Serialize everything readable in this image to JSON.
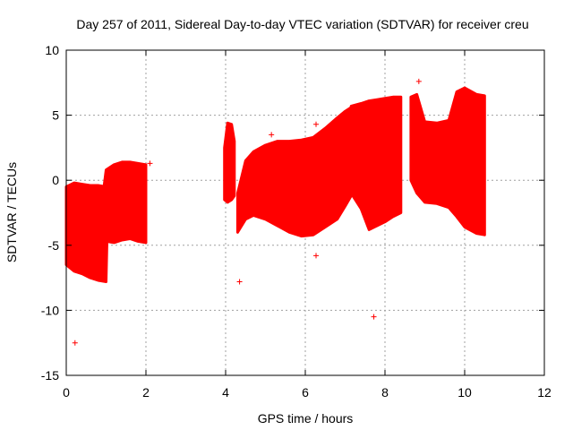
{
  "chart_data": {
    "type": "scatter",
    "title": "Day 257 of 2011, Sidereal Day-to-day VTEC variation (SDTVAR) for receiver creu",
    "xlabel": "GPS time / hours",
    "ylabel": "SDTVAR / TECUs",
    "xlim": [
      0,
      12
    ],
    "ylim": [
      -15,
      10
    ],
    "xticks": [
      0,
      2,
      4,
      6,
      8,
      10,
      12
    ],
    "yticks": [
      -15,
      -10,
      -5,
      0,
      5,
      10
    ],
    "xtick_labels": [
      "0",
      "2",
      "4",
      "6",
      "8",
      "10",
      "12"
    ],
    "ytick_labels": [
      "-15",
      "-10",
      "-5",
      "0",
      "5",
      "10"
    ],
    "grid": true,
    "legend": "none",
    "series": [
      {
        "name": "SDTVAR",
        "color": "#ff0000",
        "marker": "plus",
        "bands": [
          {
            "x": [
              0.0,
              0.2,
              0.4,
              0.6,
              0.8,
              1.0,
              1.02
            ],
            "upper": [
              -0.5,
              -0.2,
              -0.3,
              -0.4,
              -0.4,
              -0.5,
              -0.5
            ],
            "lower": [
              -6.5,
              -7.0,
              -7.2,
              -7.5,
              -7.7,
              -7.8,
              -5.0
            ]
          },
          {
            "x": [
              0.95,
              1.0,
              1.2,
              1.4,
              1.6,
              1.8,
              2.0
            ],
            "upper": [
              -0.4,
              0.8,
              1.2,
              1.4,
              1.4,
              1.3,
              1.2
            ],
            "lower": [
              -5.0,
              -4.7,
              -4.8,
              -4.6,
              -4.5,
              -4.7,
              -4.8
            ]
          },
          {
            "x": [
              3.97,
              4.05,
              4.15,
              4.22
            ],
            "upper": [
              2.5,
              4.4,
              4.3,
              3.0
            ],
            "lower": [
              -1.5,
              -1.7,
              -1.5,
              -1.2
            ]
          },
          {
            "x": [
              4.3,
              4.5,
              4.7,
              5.0,
              5.3,
              5.6,
              5.9,
              6.2,
              6.5,
              6.8,
              7.0,
              7.15
            ],
            "upper": [
              -1.0,
              1.5,
              2.2,
              2.7,
              3.0,
              3.0,
              3.1,
              3.3,
              4.0,
              4.8,
              5.3,
              5.6
            ],
            "lower": [
              -4.0,
              -3.0,
              -2.7,
              -3.0,
              -3.5,
              -4.0,
              -4.3,
              -4.2,
              -3.6,
              -3.0,
              -2.0,
              -1.2
            ]
          },
          {
            "x": [
              7.15,
              7.4,
              7.6,
              7.8,
              8.0,
              8.2,
              8.4
            ],
            "upper": [
              5.7,
              5.9,
              6.1,
              6.2,
              6.3,
              6.4,
              6.4
            ],
            "lower": [
              -1.0,
              -2.2,
              -3.8,
              -3.5,
              -3.2,
              -2.8,
              -2.5
            ]
          },
          {
            "x": [
              8.65,
              8.8,
              9.0,
              9.3,
              9.6,
              9.8,
              10.0,
              10.3,
              10.5
            ],
            "upper": [
              6.4,
              6.6,
              4.5,
              4.4,
              4.6,
              6.8,
              7.1,
              6.6,
              6.5
            ],
            "lower": [
              0.0,
              -1.0,
              -1.7,
              -1.8,
              -2.1,
              -2.8,
              -3.6,
              -4.1,
              -4.2
            ]
          }
        ],
        "outliers": [
          {
            "x": 0.22,
            "y": -12.5
          },
          {
            "x": 2.1,
            "y": 1.3
          },
          {
            "x": 4.35,
            "y": -7.8
          },
          {
            "x": 6.27,
            "y": -5.8
          },
          {
            "x": 7.72,
            "y": -10.5
          },
          {
            "x": 8.85,
            "y": 7.6
          },
          {
            "x": 5.15,
            "y": 3.5
          },
          {
            "x": 6.27,
            "y": 4.3
          }
        ]
      }
    ]
  }
}
